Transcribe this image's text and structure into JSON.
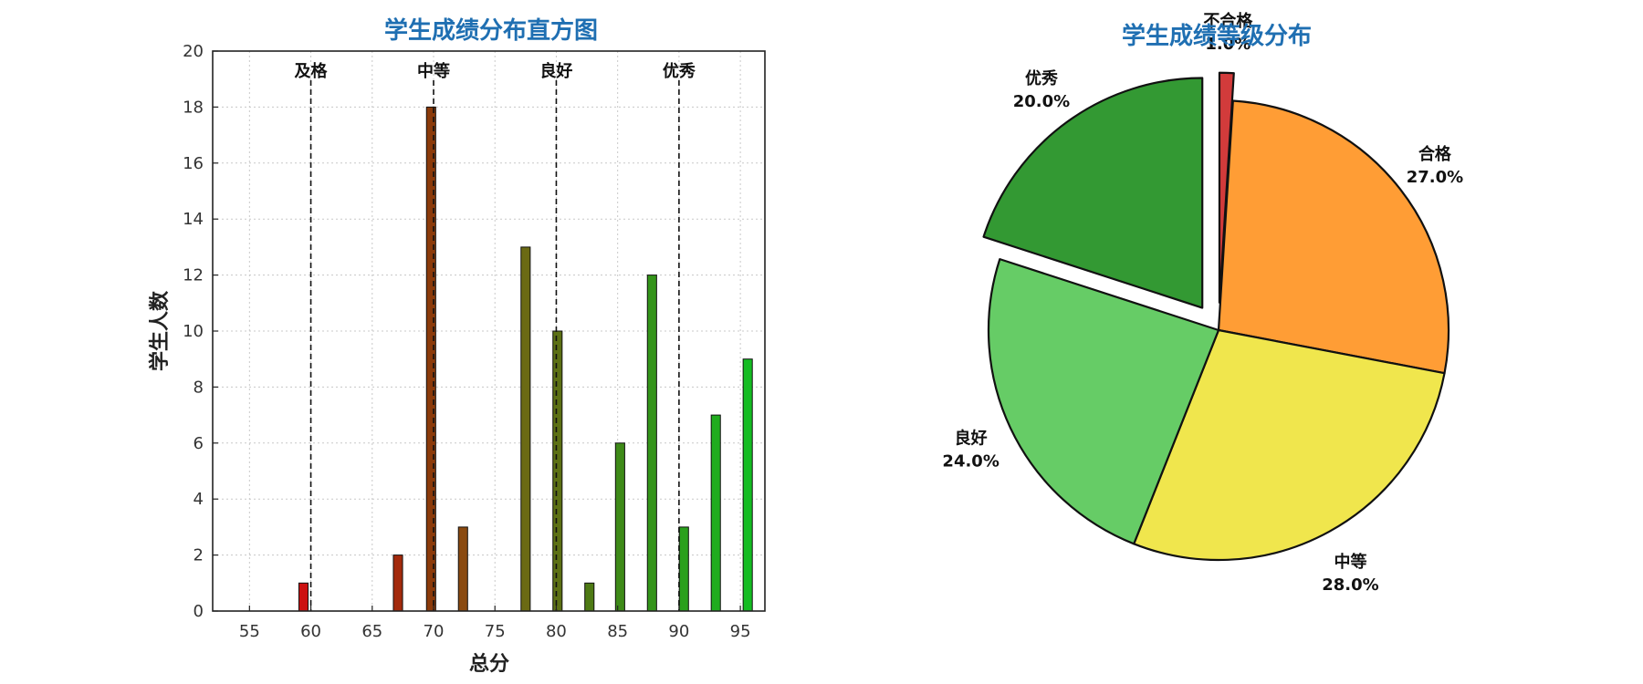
{
  "chart_data": [
    {
      "type": "bar",
      "title": "学生成绩分布直方图",
      "xlabel": "总分",
      "ylabel": "学生人数",
      "xlim": [
        52,
        97
      ],
      "ylim": [
        0,
        20
      ],
      "xticks": [
        55,
        60,
        65,
        70,
        75,
        80,
        85,
        90,
        95
      ],
      "yticks": [
        0,
        2,
        4,
        6,
        8,
        10,
        12,
        14,
        16,
        18,
        20
      ],
      "grid": true,
      "bin_width": 0.75,
      "bars": [
        {
          "x": 59.4,
          "value": 1,
          "color": "#cc1111"
        },
        {
          "x": 67.1,
          "value": 2,
          "color": "#a32a0c"
        },
        {
          "x": 69.8,
          "value": 18,
          "color": "#8b3a0a"
        },
        {
          "x": 72.4,
          "value": 3,
          "color": "#8a4a10"
        },
        {
          "x": 77.5,
          "value": 13,
          "color": "#6b6a14"
        },
        {
          "x": 80.1,
          "value": 10,
          "color": "#5c7014"
        },
        {
          "x": 82.7,
          "value": 1,
          "color": "#4e7a14"
        },
        {
          "x": 85.2,
          "value": 6,
          "color": "#3e8a18"
        },
        {
          "x": 87.8,
          "value": 12,
          "color": "#34941a"
        },
        {
          "x": 90.4,
          "value": 3,
          "color": "#2aa01c"
        },
        {
          "x": 93.0,
          "value": 7,
          "color": "#20ac1e"
        },
        {
          "x": 95.6,
          "value": 9,
          "color": "#14bc22"
        }
      ],
      "annotations": [
        {
          "x": 60,
          "label": "及格"
        },
        {
          "x": 70,
          "label": "中等"
        },
        {
          "x": 80,
          "label": "良好"
        },
        {
          "x": 90,
          "label": "优秀"
        }
      ]
    },
    {
      "type": "pie",
      "title": "学生成绩等级分布",
      "slices": [
        {
          "label": "不合格",
          "value": 1.0,
          "pct_label": "1.0%",
          "color": "#d23b3b",
          "explode": true
        },
        {
          "label": "合格",
          "value": 27.0,
          "pct_label": "27.0%",
          "color": "#ff9d35",
          "explode": false
        },
        {
          "label": "中等",
          "value": 28.0,
          "pct_label": "28.0%",
          "color": "#f0e64d",
          "explode": false
        },
        {
          "label": "良好",
          "value": 24.0,
          "pct_label": "24.0%",
          "color": "#66cc66",
          "explode": false
        },
        {
          "label": "优秀",
          "value": 20.0,
          "pct_label": "20.0%",
          "color": "#339933",
          "explode": true
        }
      ],
      "start_angle": 90,
      "direction": "clockwise"
    }
  ]
}
